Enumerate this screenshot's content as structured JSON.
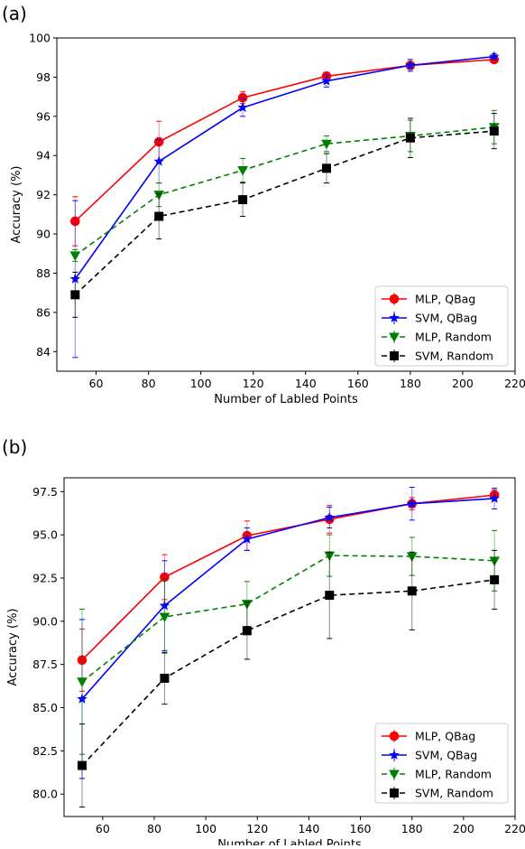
{
  "chart_data": [
    {
      "type": "line",
      "panel_label": "(a)",
      "xlabel": "Number of Labled Points",
      "ylabel": "Accuracy (%)",
      "xlim": [
        45,
        220
      ],
      "ylim": [
        83,
        100
      ],
      "xticks": [
        60,
        80,
        100,
        120,
        140,
        160,
        180,
        200,
        220
      ],
      "yticks": [
        84,
        86,
        88,
        90,
        92,
        94,
        96,
        98,
        100
      ],
      "grid": false,
      "legend_position": "lower-right",
      "x": [
        52,
        84,
        116,
        148,
        180,
        212
      ],
      "series": [
        {
          "name": "MLP, QBag",
          "color": "#ff0000",
          "marker": "circle",
          "linestyle": "solid",
          "values": [
            90.65,
            94.7,
            96.95,
            98.05,
            98.6,
            98.9
          ],
          "errors": [
            1.25,
            1.05,
            0.3,
            0.2,
            0.2,
            0.15
          ]
        },
        {
          "name": "SVM, QBag",
          "color": "#0000ff",
          "marker": "star",
          "linestyle": "solid",
          "values": [
            87.7,
            93.7,
            96.45,
            97.8,
            98.6,
            99.05
          ],
          "errors": [
            4.0,
            1.1,
            0.45,
            0.3,
            0.3,
            0.15
          ]
        },
        {
          "name": "MLP, Random",
          "color": "#008000",
          "marker": "triangle-down",
          "linestyle": "dashed",
          "values": [
            88.9,
            92.0,
            93.25,
            94.6,
            95.0,
            95.45
          ],
          "errors": [
            0.3,
            0.6,
            0.6,
            0.4,
            0.8,
            0.85
          ]
        },
        {
          "name": "SVM, Random",
          "color": "#000000",
          "marker": "square",
          "linestyle": "dashed",
          "values": [
            86.9,
            90.9,
            91.75,
            93.35,
            94.9,
            95.25
          ],
          "errors": [
            1.15,
            1.15,
            0.85,
            0.75,
            1.0,
            0.9
          ]
        }
      ]
    },
    {
      "type": "line",
      "panel_label": "(b)",
      "xlabel": "Number of Labled Points",
      "ylabel": "Accuracy (%)",
      "xlim": [
        45,
        220
      ],
      "ylim": [
        78.7,
        98.3
      ],
      "xticks": [
        60,
        80,
        100,
        120,
        140,
        160,
        180,
        200,
        220
      ],
      "yticks": [
        80.0,
        82.5,
        85.0,
        87.5,
        90.0,
        92.5,
        95.0,
        97.5
      ],
      "ytick_labels": [
        "80.0",
        "82.5",
        "85.0",
        "87.5",
        "90.0",
        "92.5",
        "95.0",
        "97.5"
      ],
      "grid": false,
      "legend_position": "lower-right",
      "x": [
        52,
        84,
        116,
        148,
        180,
        212
      ],
      "series": [
        {
          "name": "MLP, QBag",
          "color": "#ff0000",
          "marker": "circle",
          "linestyle": "solid",
          "values": [
            87.75,
            92.55,
            94.95,
            95.9,
            96.8,
            97.3
          ],
          "errors": [
            1.8,
            1.3,
            0.85,
            0.8,
            0.35,
            0.3
          ]
        },
        {
          "name": "SVM, QBag",
          "color": "#0000ff",
          "marker": "star",
          "linestyle": "solid",
          "values": [
            85.5,
            90.9,
            94.75,
            96.0,
            96.8,
            97.1
          ],
          "errors": [
            4.6,
            2.6,
            0.65,
            0.6,
            0.95,
            0.6
          ]
        },
        {
          "name": "MLP, Random",
          "color": "#008000",
          "marker": "triangle-down",
          "linestyle": "dashed",
          "values": [
            86.5,
            90.25,
            91.0,
            93.8,
            93.75,
            93.5
          ],
          "errors": [
            4.2,
            2.1,
            1.3,
            1.2,
            1.1,
            1.75
          ]
        },
        {
          "name": "SVM, Random",
          "color": "#000000",
          "marker": "square",
          "linestyle": "dashed",
          "values": [
            81.65,
            86.7,
            89.45,
            91.5,
            91.75,
            92.4
          ],
          "errors": [
            2.4,
            1.5,
            1.65,
            2.5,
            2.25,
            1.7
          ]
        }
      ]
    }
  ]
}
